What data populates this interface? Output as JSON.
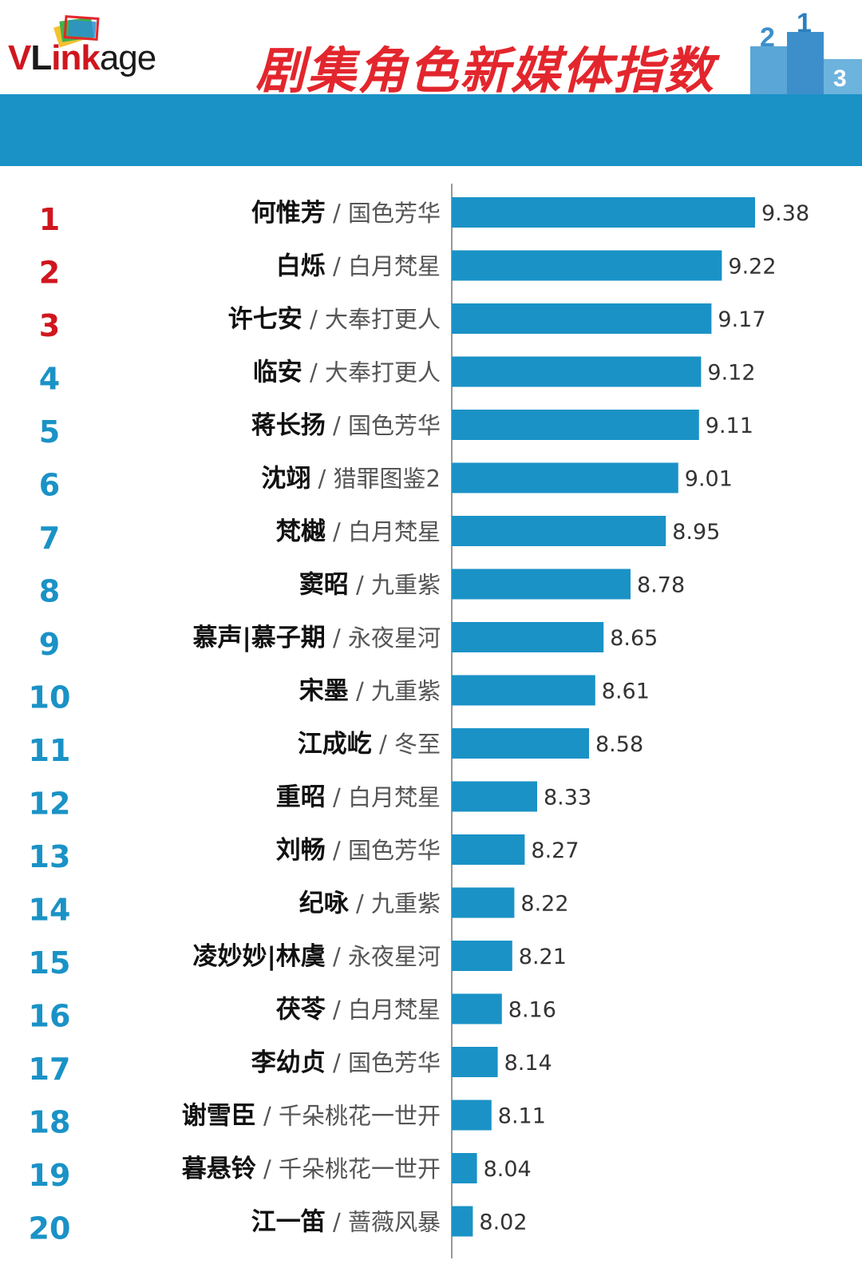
{
  "header": {
    "logo_parts": [
      "V",
      "L",
      "ink",
      "age"
    ],
    "title": "剧集角色新媒体指数"
  },
  "podium": {
    "labels": [
      "2",
      "1",
      "3"
    ]
  },
  "colors": {
    "bar": "#1a92c6",
    "rank_top": "#d0161e",
    "rank_other": "#1a92c6",
    "title": "#e3262d",
    "banner": "#1a92c6"
  },
  "chart_data": {
    "type": "bar",
    "orientation": "horizontal",
    "title": "剧集角色新媒体指数",
    "xlabel": "",
    "ylabel": "",
    "categories": [
      {
        "rank": "1",
        "name": "何惟芳",
        "show": "国色芳华"
      },
      {
        "rank": "2",
        "name": "白烁",
        "show": "白月梵星"
      },
      {
        "rank": "3",
        "name": "许七安",
        "show": "大奉打更人"
      },
      {
        "rank": "4",
        "name": "临安",
        "show": "大奉打更人"
      },
      {
        "rank": "5",
        "name": "蒋长扬",
        "show": "国色芳华"
      },
      {
        "rank": "6",
        "name": "沈翊",
        "show": "猎罪图鉴2"
      },
      {
        "rank": "7",
        "name": "梵樾",
        "show": "白月梵星"
      },
      {
        "rank": "8",
        "name": "窦昭",
        "show": "九重紫"
      },
      {
        "rank": "9",
        "name": "慕声|慕子期",
        "show": "永夜星河"
      },
      {
        "rank": "10",
        "name": "宋墨",
        "show": "九重紫"
      },
      {
        "rank": "11",
        "name": "江成屹",
        "show": "冬至"
      },
      {
        "rank": "12",
        "name": "重昭",
        "show": "白月梵星"
      },
      {
        "rank": "13",
        "name": "刘畅",
        "show": "国色芳华"
      },
      {
        "rank": "14",
        "name": "纪咏",
        "show": "九重紫"
      },
      {
        "rank": "15",
        "name": "凌妙妙|林虞",
        "show": "永夜星河"
      },
      {
        "rank": "16",
        "name": "茯苓",
        "show": "白月梵星"
      },
      {
        "rank": "17",
        "name": "李幼贞",
        "show": "国色芳华"
      },
      {
        "rank": "18",
        "name": "谢雪臣",
        "show": "千朵桃花一世开"
      },
      {
        "rank": "19",
        "name": "暮悬铃",
        "show": "千朵桃花一世开"
      },
      {
        "rank": "20",
        "name": "江一笛",
        "show": "蔷薇风暴"
      }
    ],
    "values": [
      9.38,
      9.22,
      9.17,
      9.12,
      9.11,
      9.01,
      8.95,
      8.78,
      8.65,
      8.61,
      8.58,
      8.33,
      8.27,
      8.22,
      8.21,
      8.16,
      8.14,
      8.11,
      8.04,
      8.02
    ],
    "value_labels": [
      "9.38",
      "9.22",
      "9.17",
      "9.12",
      "9.11",
      "9.01",
      "8.95",
      "8.78",
      "8.65",
      "8.61",
      "8.58",
      "8.33",
      "8.27",
      "8.22",
      "8.21",
      "8.16",
      "8.14",
      "8.11",
      "8.04",
      "8.02"
    ],
    "xlim": [
      7.92,
      9.38
    ],
    "grid": false,
    "legend": "none"
  }
}
